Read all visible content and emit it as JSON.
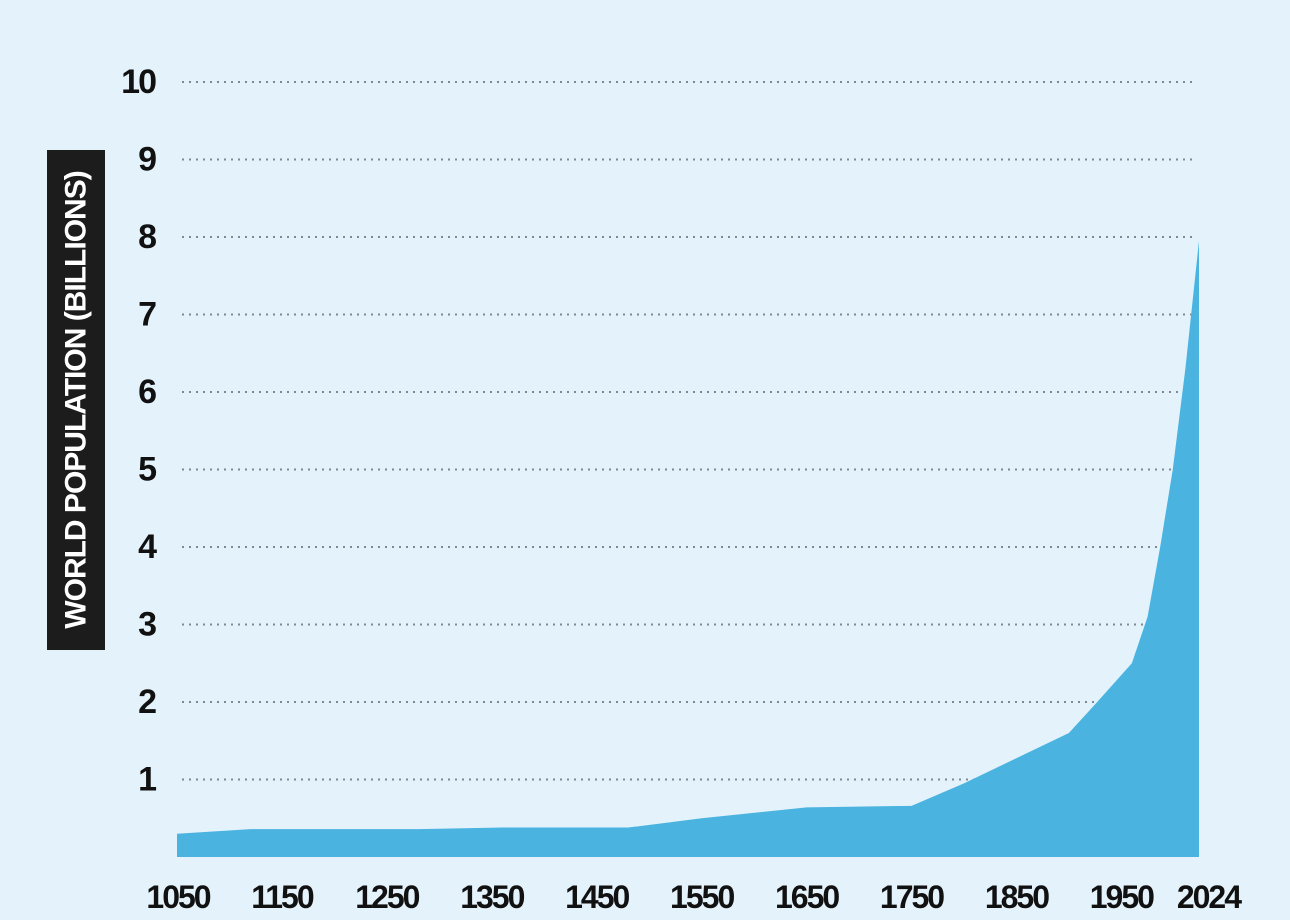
{
  "chart_data": {
    "type": "area",
    "title": "",
    "xlabel": "",
    "ylabel": "WORLD POPULATION (BILLIONS)",
    "ylim": [
      0,
      10
    ],
    "xlim": [
      1050,
      2024
    ],
    "grid": true,
    "legend": "none",
    "colors": {
      "background": "#e4f3fb",
      "area": "#4ab3e0",
      "grid": "#7c8a93",
      "ylabel_box": "#1c1c1c",
      "text": "#111111"
    },
    "x_ticks": [
      1050,
      1150,
      1250,
      1350,
      1450,
      1550,
      1650,
      1750,
      1850,
      1950,
      2024
    ],
    "x_tick_labels": [
      "1050",
      "1150",
      "1250",
      "1350",
      "1450",
      "1550",
      "1650",
      "1750",
      "1850",
      "1950",
      "2024"
    ],
    "y_ticks": [
      1,
      2,
      3,
      4,
      5,
      6,
      7,
      8,
      9,
      10
    ],
    "y_tick_labels": [
      "1",
      "2",
      "3",
      "4",
      "5",
      "6",
      "7",
      "8",
      "9",
      "10"
    ],
    "series": [
      {
        "x": [
          1050,
          1120,
          1280,
          1360,
          1480,
          1550,
          1650,
          1750,
          1800,
          1900,
          1927,
          1960,
          1975,
          1987,
          1999,
          2011,
          2024
        ],
        "values": [
          0.3,
          0.36,
          0.36,
          0.38,
          0.38,
          0.5,
          0.64,
          0.66,
          0.95,
          1.6,
          2.0,
          2.5,
          3.1,
          4.0,
          5.0,
          6.3,
          7.95
        ]
      }
    ]
  }
}
